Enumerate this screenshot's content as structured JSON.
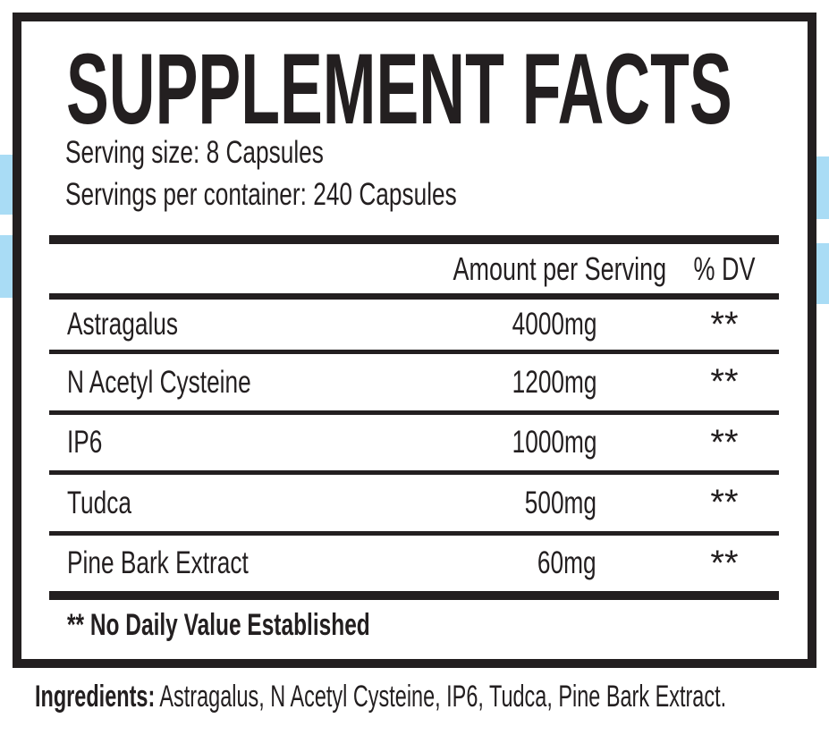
{
  "label": {
    "title": "SUPPLEMENT FACTS",
    "serving_size": "Serving size: 8 Capsules",
    "servings_per_container": "Servings per container: 240 Capsules",
    "columns": {
      "amount": "Amount per Serving",
      "dv": "% DV"
    },
    "rows": [
      {
        "name": "Astragalus",
        "amount": "4000mg",
        "dv": "**"
      },
      {
        "name": "N Acetyl Cysteine",
        "amount": "1200mg",
        "dv": "**"
      },
      {
        "name": "IP6",
        "amount": "1000mg",
        "dv": "**"
      },
      {
        "name": "Tudca",
        "amount": "500mg",
        "dv": "**"
      },
      {
        "name": "Pine Bark Extract",
        "amount": "60mg",
        "dv": "**"
      }
    ],
    "footnote": "** No Daily Value Established"
  },
  "ingredients": {
    "label": "Ingredients:",
    "text": "Astragalus, N Acetyl Cysteine, IP6, Tudca, Pine Bark Extract."
  },
  "colors": {
    "ink": "#231f20",
    "accent_blue": "#a9dcf5",
    "background": "#ffffff"
  }
}
